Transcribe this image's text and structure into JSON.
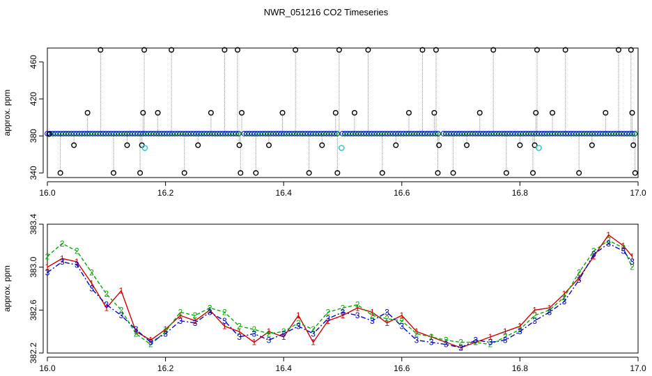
{
  "figure_title": "NWR_051216  CO2 Timeseries",
  "colors": {
    "outlier_marker": "#000000",
    "stem": "#888888",
    "series1": "#d00000",
    "series2": "#00aa00",
    "series3": "#0000cc",
    "cyan_marker": "#33cccc"
  },
  "chart_data": [
    {
      "type": "scatter",
      "title": "",
      "xlabel": "",
      "ylabel": "approx. ppm",
      "xlim": [
        16.0,
        17.0
      ],
      "ylim": [
        335,
        475
      ],
      "x_ticks": [
        "16.0",
        "16.2",
        "16.4",
        "16.6",
        "16.8",
        "17.0"
      ],
      "y_ticks": [
        "340",
        "380",
        "420",
        "460"
      ],
      "grid": false,
      "baseline_ppm": 382.5,
      "baseline_gaps": [
        16.165,
        16.33,
        16.495,
        16.665,
        16.83
      ],
      "outliers": [
        {
          "x": 16.003,
          "y": 382
        },
        {
          "x": 16.022,
          "y": 340
        },
        {
          "x": 16.045,
          "y": 370
        },
        {
          "x": 16.068,
          "y": 405
        },
        {
          "x": 16.09,
          "y": 473
        },
        {
          "x": 16.112,
          "y": 340
        },
        {
          "x": 16.135,
          "y": 370
        },
        {
          "x": 16.157,
          "y": 340
        },
        {
          "x": 16.16,
          "y": 370
        },
        {
          "x": 16.162,
          "y": 405
        },
        {
          "x": 16.164,
          "y": 473
        },
        {
          "x": 16.187,
          "y": 405
        },
        {
          "x": 16.21,
          "y": 473
        },
        {
          "x": 16.232,
          "y": 340
        },
        {
          "x": 16.255,
          "y": 370
        },
        {
          "x": 16.277,
          "y": 405
        },
        {
          "x": 16.3,
          "y": 473
        },
        {
          "x": 16.322,
          "y": 473
        },
        {
          "x": 16.325,
          "y": 370
        },
        {
          "x": 16.327,
          "y": 340
        },
        {
          "x": 16.329,
          "y": 405
        },
        {
          "x": 16.353,
          "y": 340
        },
        {
          "x": 16.375,
          "y": 370
        },
        {
          "x": 16.398,
          "y": 405
        },
        {
          "x": 16.42,
          "y": 473
        },
        {
          "x": 16.443,
          "y": 340
        },
        {
          "x": 16.465,
          "y": 370
        },
        {
          "x": 16.488,
          "y": 405
        },
        {
          "x": 16.491,
          "y": 340
        },
        {
          "x": 16.494,
          "y": 473
        },
        {
          "x": 16.52,
          "y": 405
        },
        {
          "x": 16.543,
          "y": 473
        },
        {
          "x": 16.567,
          "y": 340
        },
        {
          "x": 16.59,
          "y": 370
        },
        {
          "x": 16.612,
          "y": 405
        },
        {
          "x": 16.635,
          "y": 473
        },
        {
          "x": 16.655,
          "y": 405
        },
        {
          "x": 16.658,
          "y": 473
        },
        {
          "x": 16.661,
          "y": 340
        },
        {
          "x": 16.663,
          "y": 370
        },
        {
          "x": 16.687,
          "y": 340
        },
        {
          "x": 16.71,
          "y": 370
        },
        {
          "x": 16.732,
          "y": 405
        },
        {
          "x": 16.755,
          "y": 473
        },
        {
          "x": 16.777,
          "y": 340
        },
        {
          "x": 16.8,
          "y": 370
        },
        {
          "x": 16.822,
          "y": 340
        },
        {
          "x": 16.825,
          "y": 370
        },
        {
          "x": 16.827,
          "y": 405
        },
        {
          "x": 16.829,
          "y": 473
        },
        {
          "x": 16.855,
          "y": 405
        },
        {
          "x": 16.877,
          "y": 473
        },
        {
          "x": 16.9,
          "y": 340
        },
        {
          "x": 16.922,
          "y": 370
        },
        {
          "x": 16.945,
          "y": 405
        },
        {
          "x": 16.967,
          "y": 473
        },
        {
          "x": 16.988,
          "y": 473
        },
        {
          "x": 16.99,
          "y": 405
        },
        {
          "x": 16.992,
          "y": 370
        },
        {
          "x": 16.995,
          "y": 340
        }
      ],
      "cyan_points": [
        {
          "x": 16.165,
          "y": 367
        },
        {
          "x": 16.498,
          "y": 367
        },
        {
          "x": 16.832,
          "y": 367
        }
      ]
    },
    {
      "type": "line",
      "title": "",
      "xlabel": "",
      "ylabel": "approx. ppm",
      "xlim": [
        16.0,
        17.0
      ],
      "ylim": [
        382.2,
        383.4
      ],
      "x_ticks": [
        "16.0",
        "16.2",
        "16.4",
        "16.6",
        "16.8",
        "17.0"
      ],
      "y_ticks": [
        "382.2",
        "382.6",
        "383.0",
        "383.4"
      ],
      "grid": false,
      "x": [
        16.0,
        16.025,
        16.05,
        16.075,
        16.1,
        16.125,
        16.15,
        16.175,
        16.2,
        16.225,
        16.25,
        16.275,
        16.3,
        16.325,
        16.35,
        16.375,
        16.4,
        16.425,
        16.45,
        16.475,
        16.5,
        16.525,
        16.55,
        16.575,
        16.6,
        16.625,
        16.65,
        16.675,
        16.7,
        16.725,
        16.75,
        16.775,
        16.8,
        16.825,
        16.85,
        16.875,
        16.9,
        16.925,
        16.95,
        16.975,
        16.99
      ],
      "series": [
        {
          "name": "1",
          "symbol": "1",
          "values": [
            383.0,
            383.08,
            383.05,
            382.85,
            382.62,
            382.78,
            382.4,
            382.32,
            382.42,
            382.55,
            382.5,
            382.6,
            382.45,
            382.4,
            382.3,
            382.4,
            382.35,
            382.55,
            382.3,
            382.5,
            382.55,
            382.62,
            382.58,
            382.48,
            382.55,
            382.4,
            382.35,
            382.3,
            382.25,
            382.3,
            382.35,
            382.4,
            382.45,
            382.6,
            382.62,
            382.75,
            382.9,
            383.1,
            383.3,
            383.2,
            383.1
          ]
        },
        {
          "name": "2",
          "symbol": "2",
          "values": [
            383.1,
            383.22,
            383.15,
            382.95,
            382.75,
            382.6,
            382.38,
            382.28,
            382.4,
            382.58,
            382.55,
            382.62,
            382.58,
            382.45,
            382.42,
            382.38,
            382.4,
            382.48,
            382.42,
            382.58,
            382.62,
            382.65,
            382.55,
            382.52,
            382.5,
            382.38,
            382.35,
            382.32,
            382.3,
            382.3,
            382.28,
            382.35,
            382.42,
            382.55,
            382.6,
            382.72,
            382.95,
            383.15,
            383.25,
            383.18,
            383.0
          ]
        },
        {
          "name": "3",
          "symbol": "3",
          "values": [
            382.95,
            383.05,
            383.02,
            382.8,
            382.65,
            382.55,
            382.42,
            382.3,
            382.38,
            382.5,
            382.48,
            382.58,
            382.5,
            382.35,
            382.38,
            382.32,
            382.38,
            382.45,
            382.38,
            382.52,
            382.58,
            382.55,
            382.5,
            382.58,
            382.45,
            382.32,
            382.3,
            382.28,
            382.25,
            382.32,
            382.3,
            382.32,
            382.4,
            382.5,
            382.58,
            382.68,
            382.88,
            383.12,
            383.22,
            383.15,
            383.05
          ]
        }
      ]
    }
  ]
}
